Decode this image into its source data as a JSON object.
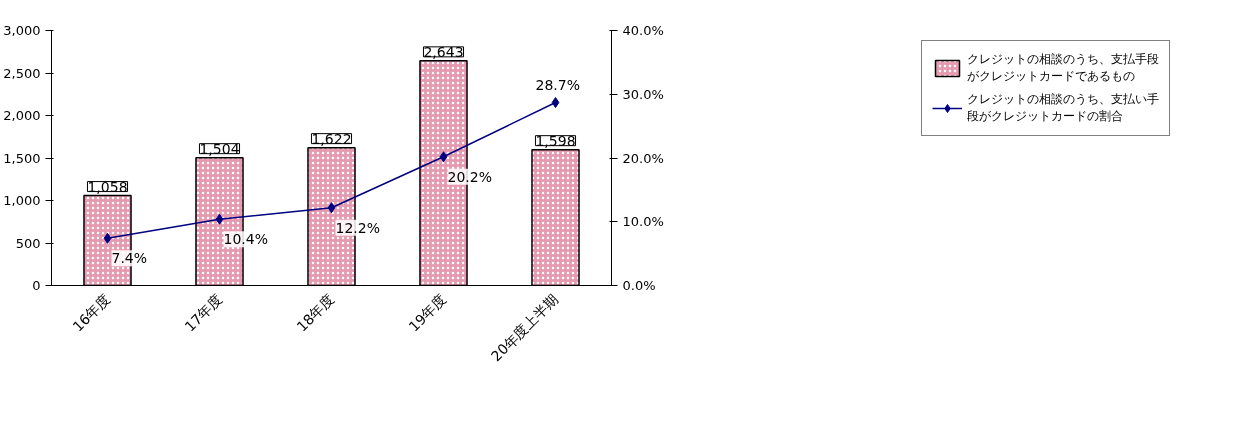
{
  "chart_data": {
    "type": "bar",
    "categories": [
      "16年度",
      "17年度",
      "18年度",
      "19年度",
      "20年度上半期"
    ],
    "series": [
      {
        "name": "クレジットの相談のうち、支払手段がクレジットカードであるもの",
        "color": "#e59ab0",
        "values": [
          1058,
          1504,
          1622,
          2643,
          1598
        ],
        "value_labels": [
          "1,058",
          "1,504",
          "1,622",
          "2,643",
          "1,598"
        ]
      },
      {
        "name": "クレジットの相談のうち、支払い手段がクレジットカードの割合",
        "type": "line",
        "axis": "y2",
        "color": "#000080",
        "values": [
          7.4,
          10.4,
          12.2,
          20.2,
          28.7
        ],
        "value_labels": [
          "7.4%",
          "10.4%",
          "12.2%",
          "20.2%",
          "28.7%"
        ]
      }
    ],
    "ylim": [
      0,
      3000
    ],
    "yticks": [
      {
        "value": 0,
        "label": "0"
      },
      {
        "value": 500,
        "label": "500"
      },
      {
        "value": 1000,
        "label": "1,000"
      },
      {
        "value": 1500,
        "label": "1,500"
      },
      {
        "value": 2000,
        "label": "2,000"
      },
      {
        "value": 2500,
        "label": "2,500"
      },
      {
        "value": 3000,
        "label": "3,000"
      }
    ],
    "y2lim": [
      0,
      40
    ],
    "y2ticks": [
      {
        "value": 0,
        "label": "0.0%"
      },
      {
        "value": 10,
        "label": "10.0%"
      },
      {
        "value": 20,
        "label": "20.0%"
      },
      {
        "value": 30,
        "label": "30.0%"
      },
      {
        "value": 40,
        "label": "40.0%"
      }
    ],
    "grid": false,
    "legend": "right",
    "marker": "diamond",
    "line_style": "solid"
  }
}
